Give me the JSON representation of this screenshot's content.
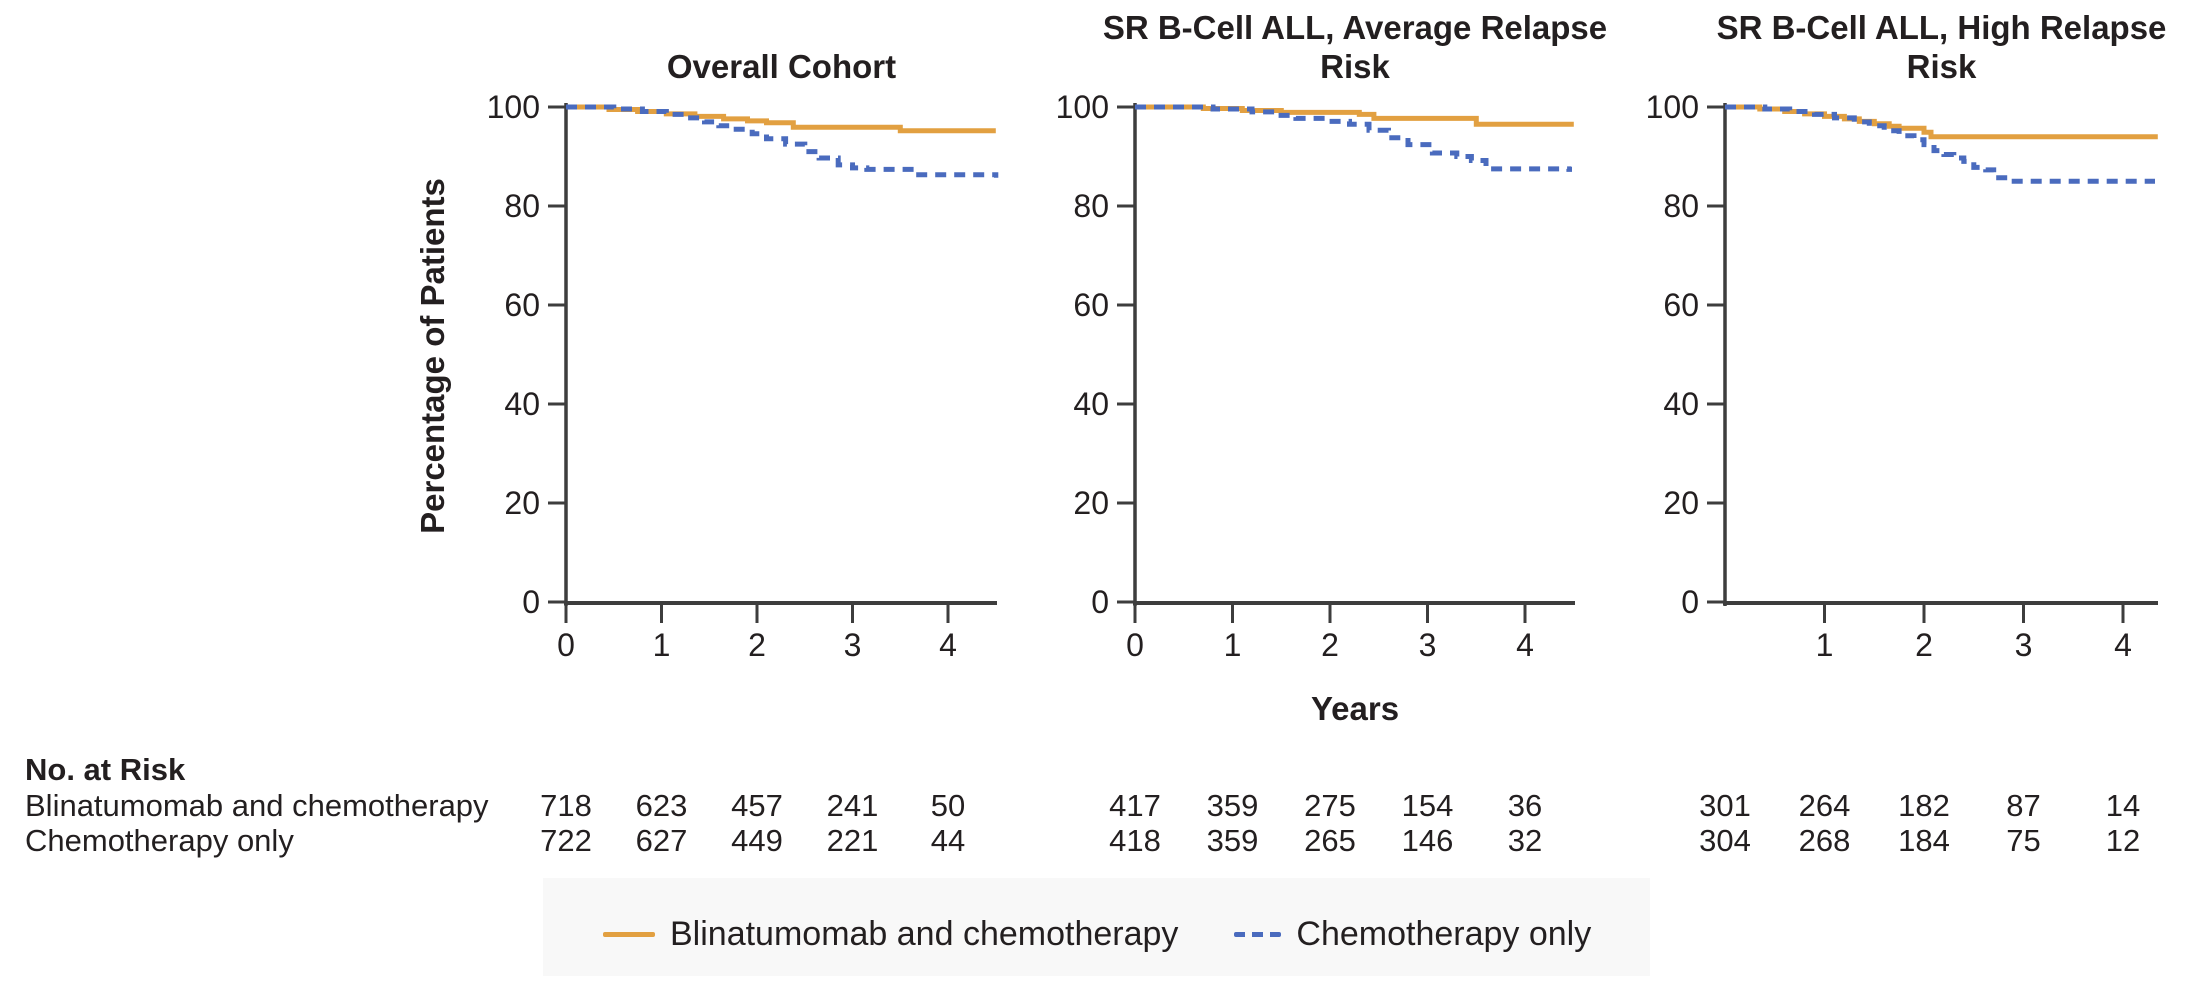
{
  "axes": {
    "y_label": "Percentage of Patients",
    "x_label": "Years"
  },
  "colors": {
    "blinatumomab": "#E2A041",
    "chemotherapy": "#4A6BBE",
    "axis": "#3d3d3d",
    "text": "#231f20",
    "legend_background": "#f8f8f8"
  },
  "legend": {
    "items": [
      {
        "label": "Blinatumomab and chemotherapy",
        "style": "solid",
        "color": "#E2A041"
      },
      {
        "label": "Chemotherapy only",
        "style": "dashed",
        "color": "#4A6BBE"
      }
    ]
  },
  "risk_table": {
    "header": "No. at Risk",
    "row_labels": [
      "Blinatumomab and chemotherapy",
      "Chemotherapy only"
    ]
  },
  "chart_data": [
    {
      "type": "line",
      "subtype": "kaplan-meier-step",
      "title_lines": [
        "Overall Cohort"
      ],
      "xlabel": "Years",
      "ylabel": "Percentage of Patients",
      "xlim": [
        0,
        4.5
      ],
      "ylim": [
        0,
        100
      ],
      "x_ticks": [
        0,
        1,
        2,
        3,
        4
      ],
      "y_ticks": [
        0,
        20,
        40,
        60,
        80,
        100
      ],
      "grid": false,
      "series": [
        {
          "name": "Blinatumomab and chemotherapy",
          "style": "solid",
          "color": "#E2A041",
          "points": [
            [
              0,
              100
            ],
            [
              0.45,
              99.5
            ],
            [
              0.75,
              99.1
            ],
            [
              1.05,
              98.6
            ],
            [
              1.35,
              98.1
            ],
            [
              1.65,
              97.6
            ],
            [
              1.9,
              97.2
            ],
            [
              2.1,
              96.8
            ],
            [
              2.38,
              95.9
            ],
            [
              3.5,
              95.2
            ],
            [
              4.5,
              95.2
            ]
          ]
        },
        {
          "name": "Chemotherapy only",
          "style": "dashed",
          "color": "#4A6BBE",
          "points": [
            [
              0,
              100
            ],
            [
              0.5,
              99.6
            ],
            [
              0.8,
              99.1
            ],
            [
              1.05,
              98.5
            ],
            [
              1.25,
              97.8
            ],
            [
              1.45,
              97.0
            ],
            [
              1.6,
              96.2
            ],
            [
              1.75,
              95.5
            ],
            [
              1.95,
              94.6
            ],
            [
              2.1,
              93.6
            ],
            [
              2.3,
              92.5
            ],
            [
              2.5,
              91.0
            ],
            [
              2.65,
              89.7
            ],
            [
              2.85,
              88.3
            ],
            [
              3.0,
              87.7
            ],
            [
              3.15,
              87.4
            ],
            [
              3.65,
              86.3
            ],
            [
              4.5,
              86.2
            ]
          ]
        }
      ],
      "no_at_risk": [
        [
          718,
          623,
          457,
          241,
          50
        ],
        [
          722,
          627,
          449,
          221,
          44
        ]
      ]
    },
    {
      "type": "line",
      "subtype": "kaplan-meier-step",
      "title_lines": [
        "SR B-Cell ALL, Average Relapse",
        "Risk"
      ],
      "xlabel": "Years",
      "ylabel": "Percentage of Patients",
      "xlim": [
        0,
        4.5
      ],
      "ylim": [
        0,
        100
      ],
      "x_ticks": [
        0,
        1,
        2,
        3,
        4
      ],
      "y_ticks": [
        0,
        20,
        40,
        60,
        80,
        100
      ],
      "grid": false,
      "series": [
        {
          "name": "Blinatumomab and chemotherapy",
          "style": "solid",
          "color": "#E2A041",
          "points": [
            [
              0,
              100
            ],
            [
              0.7,
              99.7
            ],
            [
              1.1,
              99.3
            ],
            [
              1.5,
              98.9
            ],
            [
              2.3,
              98.5
            ],
            [
              2.45,
              97.7
            ],
            [
              3.5,
              96.5
            ],
            [
              4.5,
              96.5
            ]
          ]
        },
        {
          "name": "Chemotherapy only",
          "style": "dashed",
          "color": "#4A6BBE",
          "points": [
            [
              0,
              100
            ],
            [
              0.8,
              99.6
            ],
            [
              1.2,
              99.0
            ],
            [
              1.45,
              98.3
            ],
            [
              1.65,
              97.7
            ],
            [
              1.95,
              97.1
            ],
            [
              2.2,
              96.5
            ],
            [
              2.4,
              95.3
            ],
            [
              2.6,
              93.8
            ],
            [
              2.8,
              92.4
            ],
            [
              3.05,
              90.7
            ],
            [
              3.3,
              90.0
            ],
            [
              3.45,
              89.2
            ],
            [
              3.6,
              87.5
            ],
            [
              4.45,
              87.4
            ]
          ]
        }
      ],
      "no_at_risk": [
        [
          417,
          359,
          275,
          154,
          36
        ],
        [
          418,
          359,
          265,
          146,
          32
        ]
      ]
    },
    {
      "type": "line",
      "subtype": "kaplan-meier-step",
      "title_lines": [
        "SR B-Cell ALL, High Relapse",
        "Risk"
      ],
      "xlabel": "Years",
      "ylabel": "Percentage of Patients",
      "xlim": [
        0,
        4.35
      ],
      "ylim": [
        0,
        100
      ],
      "x_ticks": [
        1,
        2,
        3,
        4
      ],
      "y_ticks": [
        0,
        20,
        40,
        60,
        80,
        100
      ],
      "grid": false,
      "series": [
        {
          "name": "Blinatumomab and chemotherapy",
          "style": "solid",
          "color": "#E2A041",
          "points": [
            [
              0,
              100
            ],
            [
              0.35,
              99.6
            ],
            [
              0.6,
              99.1
            ],
            [
              0.8,
              98.6
            ],
            [
              1.0,
              98.1
            ],
            [
              1.2,
              97.6
            ],
            [
              1.35,
              97.1
            ],
            [
              1.5,
              96.6
            ],
            [
              1.65,
              96.1
            ],
            [
              1.75,
              95.7
            ],
            [
              2.0,
              94.9
            ],
            [
              2.07,
              94.0
            ],
            [
              4.35,
              94.0
            ]
          ]
        },
        {
          "name": "Chemotherapy only",
          "style": "dashed",
          "color": "#4A6BBE",
          "points": [
            [
              0,
              100
            ],
            [
              0.4,
              99.6
            ],
            [
              0.65,
              99.1
            ],
            [
              0.9,
              98.5
            ],
            [
              1.1,
              97.8
            ],
            [
              1.3,
              97.0
            ],
            [
              1.45,
              96.2
            ],
            [
              1.6,
              95.2
            ],
            [
              1.75,
              94.2
            ],
            [
              1.9,
              93.4
            ],
            [
              2.0,
              92.4
            ],
            [
              2.1,
              91.2
            ],
            [
              2.2,
              90.4
            ],
            [
              2.3,
              89.7
            ],
            [
              2.4,
              89.0
            ],
            [
              2.5,
              87.8
            ],
            [
              2.62,
              87.3
            ],
            [
              2.7,
              85.7
            ],
            [
              2.87,
              85.0
            ],
            [
              4.3,
              85.0
            ]
          ]
        }
      ],
      "no_at_risk": [
        [
          301,
          264,
          182,
          87,
          14
        ],
        [
          304,
          268,
          184,
          75,
          12
        ]
      ]
    }
  ]
}
